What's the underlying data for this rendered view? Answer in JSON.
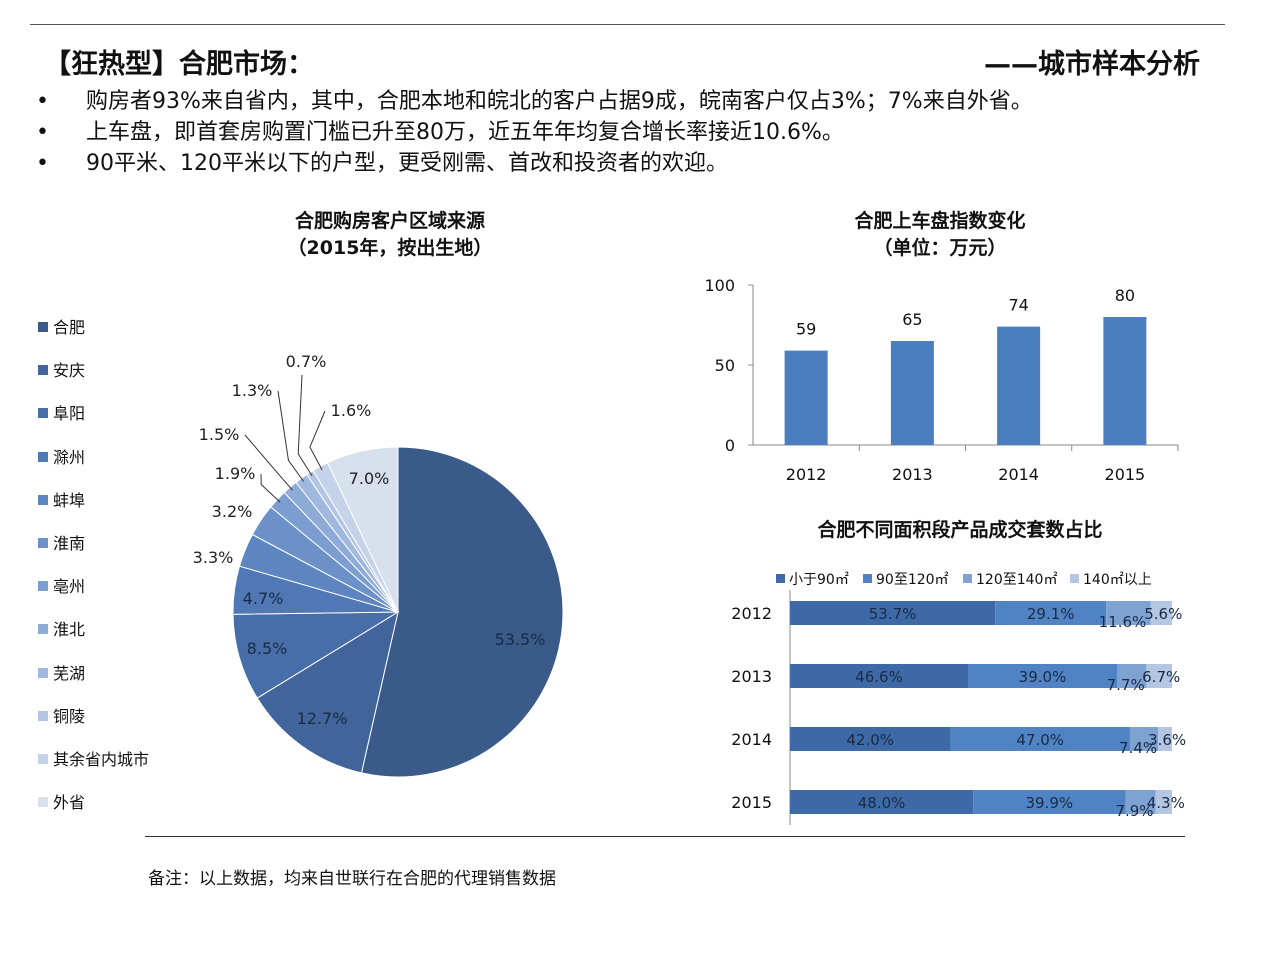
{
  "header": {
    "title": "【狂热型】合肥市场：",
    "subtitle": "——城市样本分析"
  },
  "bullets": [
    "购房者93%来自省内，其中，合肥本地和皖北的客户占据9成，皖南客户仅占3%；7%来自外省。",
    "上车盘，即首套房购置门槛已升至80万，近五年年均复合增长率接近10.6%。",
    "90平米、120平米以下的户型，更受刚需、首改和投资者的欢迎。"
  ],
  "bullet_symbol": "•",
  "note": "备注：以上数据，均来自世联行在合肥的代理销售数据",
  "chart_data": [
    {
      "type": "pie",
      "title": "合肥购房客户区域来源",
      "subtitle": "（2015年，按出生地）",
      "legend_position": "left",
      "slices": [
        {
          "name": "合肥",
          "value": 53.5,
          "label": "53.5%",
          "color": "#3a5a89"
        },
        {
          "name": "安庆",
          "value": 12.7,
          "label": "12.7%",
          "color": "#41649a"
        },
        {
          "name": "阜阳",
          "value": 8.5,
          "label": "8.5%",
          "color": "#476ea8"
        },
        {
          "name": "滁州",
          "value": 4.7,
          "label": "4.7%",
          "color": "#4f78b5"
        },
        {
          "name": "蚌埠",
          "value": 3.3,
          "label": "3.3%",
          "color": "#5d85c0"
        },
        {
          "name": "淮南",
          "value": 3.2,
          "label": "3.2%",
          "color": "#6b91c8"
        },
        {
          "name": "亳州",
          "value": 1.9,
          "label": "1.9%",
          "color": "#7c9dcf"
        },
        {
          "name": "淮北",
          "value": 1.5,
          "label": "1.5%",
          "color": "#8eaad6"
        },
        {
          "name": "芜湖",
          "value": 1.3,
          "label": "1.3%",
          "color": "#a0b8dd"
        },
        {
          "name": "铜陵",
          "value": 0.7,
          "label": "0.7%",
          "color": "#b2c5e3"
        },
        {
          "name": "其余省内城市",
          "value": 1.6,
          "label": "1.6%",
          "color": "#c4d2ea"
        },
        {
          "name": "外省",
          "value": 7.0,
          "label": "7.0%",
          "color": "#d8e0ee"
        }
      ]
    },
    {
      "type": "bar",
      "title": "合肥上车盘指数变化",
      "subtitle": "（单位：万元）",
      "categories": [
        "2012",
        "2013",
        "2014",
        "2015"
      ],
      "values": [
        59,
        65,
        74,
        80
      ],
      "ylim": [
        0,
        100
      ],
      "yticks": [
        0,
        50,
        100
      ],
      "color": "#4a7ebf"
    },
    {
      "type": "stacked-bar",
      "title": "合肥不同面积段产品成交套数占比",
      "categories": [
        "2012",
        "2013",
        "2014",
        "2015"
      ],
      "series": [
        {
          "name": "小于90㎡",
          "values": [
            53.7,
            46.6,
            42.0,
            48.0
          ],
          "labels": [
            "53.7%",
            "46.6%",
            "42.0%",
            "48.0%"
          ],
          "color": "#3d6aa6"
        },
        {
          "name": "90至120㎡",
          "values": [
            29.1,
            39.0,
            47.0,
            39.9
          ],
          "labels": [
            "29.1%",
            "39.0%",
            "47.0%",
            "39.9%"
          ],
          "color": "#4f83c4"
        },
        {
          "name": "120至140㎡",
          "values": [
            11.6,
            7.7,
            7.4,
            7.9
          ],
          "labels": [
            "11.6%",
            "7.7%",
            "7.4%",
            "7.9%"
          ],
          "color": "#7ea3d3"
        },
        {
          "name": "140㎡以上",
          "values": [
            5.6,
            6.7,
            3.6,
            4.3
          ],
          "labels": [
            "5.6%",
            "6.7%",
            "3.6%",
            "4.3%"
          ],
          "color": "#b3c6e2"
        }
      ]
    }
  ]
}
